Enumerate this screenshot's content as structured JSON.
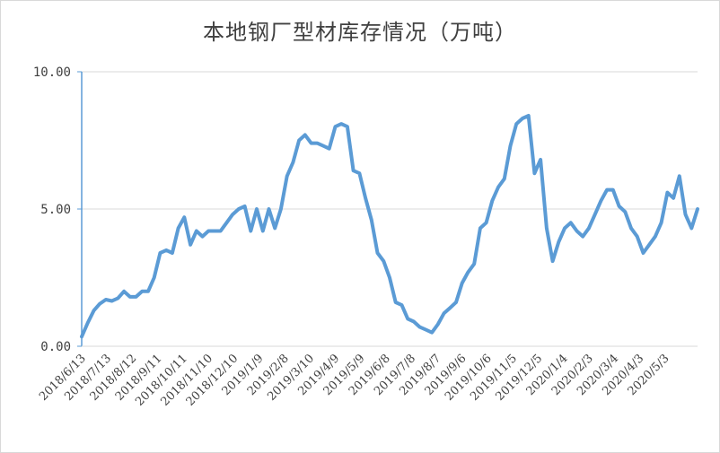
{
  "chart_data": {
    "type": "line",
    "title": "本地钢厂型材库存情况（万吨）",
    "xlabel": "",
    "ylabel": "",
    "ylim": [
      0,
      10
    ],
    "y_ticks": [
      "0.00",
      "5.00",
      "10.00"
    ],
    "x_tick_labels": [
      "2018/6/13",
      "2018/7/13",
      "2018/8/12",
      "2018/9/11",
      "2018/10/11",
      "2018/11/10",
      "2018/12/10",
      "2019/1/9",
      "2019/2/8",
      "2019/3/10",
      "2019/4/9",
      "2019/5/9",
      "2019/6/8",
      "2019/7/8",
      "2019/8/7",
      "2019/9/6",
      "2019/10/6",
      "2019/11/5",
      "2019/12/5",
      "2020/1/4",
      "2020/2/3",
      "2020/3/4",
      "2020/4/3",
      "2020/5/3"
    ],
    "grid": true,
    "series_color": "#5b9bd5",
    "series": [
      {
        "values": [
          0.35,
          0.85,
          1.3,
          1.55,
          1.7,
          1.65,
          1.75,
          2.0,
          1.8,
          1.8,
          2.0,
          2.0,
          2.5,
          3.4,
          3.5,
          3.4,
          4.3,
          4.7,
          3.7,
          4.2,
          4.0,
          4.2,
          4.2,
          4.2,
          4.5,
          4.8,
          5.0,
          5.1,
          4.2,
          5.0,
          4.2,
          5.0,
          4.3,
          5.0,
          6.2,
          6.7,
          7.5,
          7.7,
          7.4,
          7.4,
          7.3,
          7.2,
          8.0,
          8.1,
          8.0,
          6.4,
          6.3,
          5.4,
          4.6,
          3.4,
          3.1,
          2.5,
          1.6,
          1.5,
          1.0,
          0.9,
          0.7,
          0.6,
          0.5,
          0.8,
          1.2,
          1.4,
          1.6,
          2.3,
          2.7,
          3.0,
          4.3,
          4.5,
          5.3,
          5.8,
          6.1,
          7.3,
          8.1,
          8.3,
          8.4,
          6.3,
          6.8,
          4.3,
          3.1,
          3.8,
          4.3,
          4.5,
          4.2,
          4.0,
          4.3,
          4.8,
          5.3,
          5.7,
          5.7,
          5.1,
          4.9,
          4.3,
          4.0,
          3.4,
          3.7,
          4.0,
          4.5,
          5.6,
          5.4,
          6.2,
          4.8,
          4.3,
          5.0
        ]
      }
    ]
  }
}
